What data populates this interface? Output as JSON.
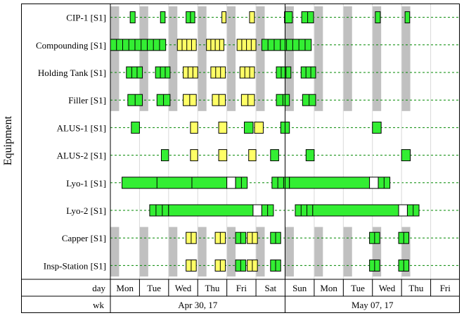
{
  "chart_data": {
    "type": "gantt",
    "ylabel": "Equipment",
    "x_axis": {
      "day_row_label": "day",
      "week_row_label": "wk",
      "days": [
        "Mon",
        "Tue",
        "Wed",
        "Thu",
        "Fri",
        "Sat",
        "Sun",
        "Mon",
        "Tue",
        "Wed",
        "Thu",
        "Fri"
      ],
      "weeks": [
        {
          "label": "Apr 30, 17",
          "start_day": 0,
          "end_day": 6
        },
        {
          "label": "May 07, 17",
          "start_day": 6,
          "end_day": 12
        }
      ],
      "range_days": [
        0,
        12
      ]
    },
    "colors": {
      "green": "#33ee33",
      "yellow": "#ffff66",
      "white": "#ffffff",
      "downtime": "#c0c0c0",
      "gridline": "#008800",
      "border": "#000000"
    },
    "rows": [
      {
        "name": "CIP-1 [S1]",
        "downtime": true,
        "tasks": [
          {
            "start": 0.68,
            "end": 0.85,
            "color": "green",
            "segments": 1
          },
          {
            "start": 1.72,
            "end": 1.88,
            "color": "green",
            "segments": 1
          },
          {
            "start": 2.6,
            "end": 2.9,
            "color": "green",
            "segments": 2
          },
          {
            "start": 3.83,
            "end": 3.97,
            "color": "yellow",
            "segments": 1
          },
          {
            "start": 4.78,
            "end": 4.95,
            "color": "yellow",
            "segments": 1
          },
          {
            "start": 5.98,
            "end": 6.25,
            "color": "green",
            "segments": 1
          },
          {
            "start": 6.57,
            "end": 6.98,
            "color": "green",
            "segments": 2
          },
          {
            "start": 9.1,
            "end": 9.27,
            "color": "green",
            "segments": 1
          },
          {
            "start": 10.12,
            "end": 10.28,
            "color": "green",
            "segments": 1
          }
        ]
      },
      {
        "name": "Compounding [S1]",
        "downtime": true,
        "tasks": [
          {
            "start": 0.0,
            "end": 1.9,
            "color": "green",
            "segments": 9
          },
          {
            "start": 2.3,
            "end": 2.95,
            "color": "yellow",
            "segments": 4
          },
          {
            "start": 3.3,
            "end": 3.9,
            "color": "yellow",
            "segments": 4
          },
          {
            "start": 4.35,
            "end": 5.0,
            "color": "yellow",
            "segments": 4
          },
          {
            "start": 5.2,
            "end": 6.9,
            "color": "green",
            "segments": 8
          }
        ]
      },
      {
        "name": "Holding Tank [S1]",
        "downtime": true,
        "tasks": [
          {
            "start": 0.55,
            "end": 1.1,
            "color": "green",
            "segments": 3
          },
          {
            "start": 1.55,
            "end": 2.05,
            "color": "green",
            "segments": 3
          },
          {
            "start": 2.5,
            "end": 3.0,
            "color": "yellow",
            "segments": 3
          },
          {
            "start": 3.45,
            "end": 3.95,
            "color": "yellow",
            "segments": 3
          },
          {
            "start": 4.45,
            "end": 4.95,
            "color": "yellow",
            "segments": 3
          },
          {
            "start": 5.7,
            "end": 6.2,
            "color": "green",
            "segments": 3
          },
          {
            "start": 6.55,
            "end": 7.05,
            "color": "green",
            "segments": 3
          }
        ]
      },
      {
        "name": "Filler [S1]",
        "downtime": true,
        "tasks": [
          {
            "start": 0.6,
            "end": 1.1,
            "color": "green",
            "segments": 2
          },
          {
            "start": 1.6,
            "end": 2.05,
            "color": "green",
            "segments": 2
          },
          {
            "start": 2.5,
            "end": 2.95,
            "color": "yellow",
            "segments": 2
          },
          {
            "start": 3.5,
            "end": 3.95,
            "color": "yellow",
            "segments": 2
          },
          {
            "start": 4.5,
            "end": 4.95,
            "color": "yellow",
            "segments": 2
          },
          {
            "start": 5.7,
            "end": 6.15,
            "color": "green",
            "segments": 2
          },
          {
            "start": 6.6,
            "end": 7.05,
            "color": "green",
            "segments": 2
          }
        ]
      },
      {
        "name": "ALUS-1 [S1]",
        "downtime": false,
        "tasks": [
          {
            "start": 0.72,
            "end": 1.0,
            "color": "green",
            "segments": 1
          },
          {
            "start": 2.75,
            "end": 3.0,
            "color": "yellow",
            "segments": 1
          },
          {
            "start": 3.72,
            "end": 4.0,
            "color": "yellow",
            "segments": 1
          },
          {
            "start": 4.6,
            "end": 4.9,
            "color": "green",
            "segments": 1
          },
          {
            "start": 4.95,
            "end": 5.25,
            "color": "yellow",
            "segments": 1
          },
          {
            "start": 5.85,
            "end": 6.15,
            "color": "green",
            "segments": 1
          },
          {
            "start": 9.0,
            "end": 9.3,
            "color": "green",
            "segments": 1
          }
        ]
      },
      {
        "name": "ALUS-2 [S1]",
        "downtime": false,
        "tasks": [
          {
            "start": 1.75,
            "end": 2.0,
            "color": "green",
            "segments": 1
          },
          {
            "start": 2.75,
            "end": 3.0,
            "color": "yellow",
            "segments": 1
          },
          {
            "start": 3.72,
            "end": 4.0,
            "color": "yellow",
            "segments": 1
          },
          {
            "start": 4.75,
            "end": 5.0,
            "color": "yellow",
            "segments": 1
          },
          {
            "start": 5.5,
            "end": 5.78,
            "color": "green",
            "segments": 1
          },
          {
            "start": 6.72,
            "end": 7.0,
            "color": "green",
            "segments": 1
          },
          {
            "start": 10.0,
            "end": 10.3,
            "color": "green",
            "segments": 1
          }
        ]
      },
      {
        "name": "Lyo-1 [S1]",
        "downtime": false,
        "tasks": [
          {
            "start": 0.4,
            "end": 4.0,
            "color": "green",
            "segments": 3
          },
          {
            "start": 4.0,
            "end": 4.3,
            "color": "white",
            "segments": 1
          },
          {
            "start": 4.3,
            "end": 4.7,
            "color": "green",
            "segments": 2
          },
          {
            "start": 5.55,
            "end": 6.15,
            "color": "green",
            "segments": 3
          },
          {
            "start": 6.15,
            "end": 8.9,
            "color": "green",
            "segments": 1
          },
          {
            "start": 8.9,
            "end": 9.2,
            "color": "white",
            "segments": 1
          },
          {
            "start": 9.2,
            "end": 9.6,
            "color": "green",
            "segments": 2
          }
        ]
      },
      {
        "name": "Lyo-2 [S1]",
        "downtime": false,
        "tasks": [
          {
            "start": 1.35,
            "end": 2.0,
            "color": "green",
            "segments": 3
          },
          {
            "start": 2.0,
            "end": 4.9,
            "color": "green",
            "segments": 1
          },
          {
            "start": 4.9,
            "end": 5.2,
            "color": "white",
            "segments": 1
          },
          {
            "start": 5.2,
            "end": 5.6,
            "color": "green",
            "segments": 2
          },
          {
            "start": 6.35,
            "end": 6.95,
            "color": "green",
            "segments": 3
          },
          {
            "start": 6.95,
            "end": 9.9,
            "color": "green",
            "segments": 1
          },
          {
            "start": 9.9,
            "end": 10.2,
            "color": "white",
            "segments": 1
          },
          {
            "start": 10.2,
            "end": 10.6,
            "color": "green",
            "segments": 2
          }
        ]
      },
      {
        "name": "Capper [S1]",
        "downtime": true,
        "tasks": [
          {
            "start": 2.6,
            "end": 2.95,
            "color": "yellow",
            "segments": 2
          },
          {
            "start": 3.6,
            "end": 3.95,
            "color": "yellow",
            "segments": 2
          },
          {
            "start": 4.3,
            "end": 4.65,
            "color": "green",
            "segments": 2
          },
          {
            "start": 4.7,
            "end": 5.05,
            "color": "yellow",
            "segments": 2
          },
          {
            "start": 5.5,
            "end": 5.85,
            "color": "green",
            "segments": 2
          },
          {
            "start": 8.9,
            "end": 9.25,
            "color": "green",
            "segments": 2
          },
          {
            "start": 9.9,
            "end": 10.25,
            "color": "green",
            "segments": 2
          }
        ]
      },
      {
        "name": "Insp-Station [S1]",
        "downtime": true,
        "tasks": [
          {
            "start": 2.6,
            "end": 2.95,
            "color": "yellow",
            "segments": 2
          },
          {
            "start": 3.6,
            "end": 3.95,
            "color": "yellow",
            "segments": 2
          },
          {
            "start": 4.3,
            "end": 4.65,
            "color": "green",
            "segments": 2
          },
          {
            "start": 4.7,
            "end": 5.05,
            "color": "yellow",
            "segments": 2
          },
          {
            "start": 5.5,
            "end": 5.85,
            "color": "green",
            "segments": 2
          },
          {
            "start": 8.9,
            "end": 9.25,
            "color": "green",
            "segments": 2
          },
          {
            "start": 9.9,
            "end": 10.25,
            "color": "green",
            "segments": 2
          }
        ]
      }
    ],
    "downtime_windows": [
      [
        0.0,
        0.3
      ],
      [
        1.0,
        1.3
      ],
      [
        2.0,
        2.3
      ],
      [
        3.0,
        3.3
      ],
      [
        4.0,
        4.3
      ],
      [
        5.0,
        5.3
      ],
      [
        6.0,
        6.3
      ],
      [
        7.0,
        7.3
      ],
      [
        8.0,
        8.3
      ],
      [
        9.0,
        9.3
      ],
      [
        10.0,
        10.3
      ]
    ],
    "downtime_sparse_rows": {
      "CIP-1 [S1]": [
        [
          0.0,
          0.3
        ],
        [
          1.0,
          1.3
        ],
        [
          2.0,
          2.3
        ],
        [
          3.0,
          3.3
        ],
        [
          4.0,
          4.3
        ],
        [
          5.0,
          5.3
        ],
        [
          6.0,
          6.3
        ],
        [
          7.0,
          7.3
        ],
        [
          8.0,
          8.3
        ]
      ]
    }
  }
}
